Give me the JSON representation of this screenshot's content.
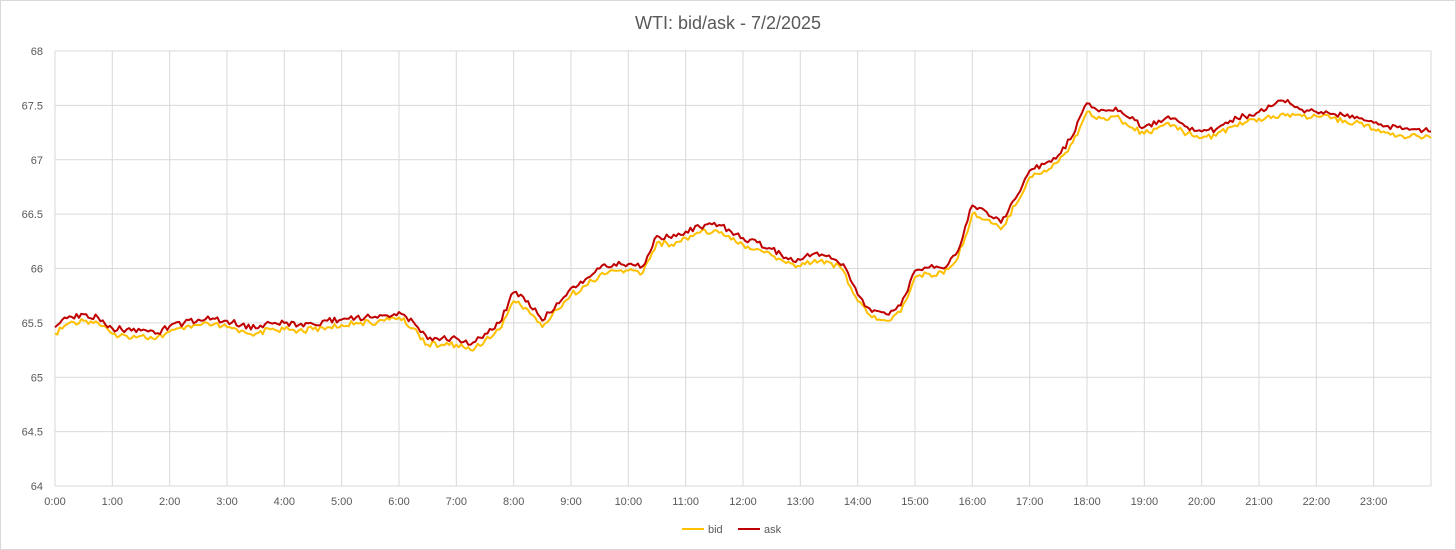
{
  "chart_data": {
    "type": "line",
    "title": "WTI: bid/ask - 7/2/2025",
    "xlabel": "",
    "ylabel": "",
    "xlim": [
      0,
      24
    ],
    "ylim": [
      64,
      68
    ],
    "grid": "on",
    "legend_position": "bottom-center",
    "x_ticks": [
      "0:00",
      "1:00",
      "2:00",
      "3:00",
      "4:00",
      "5:00",
      "6:00",
      "7:00",
      "8:00",
      "9:00",
      "10:00",
      "11:00",
      "12:00",
      "13:00",
      "14:00",
      "15:00",
      "16:00",
      "17:00",
      "18:00",
      "19:00",
      "20:00",
      "21:00",
      "22:00",
      "23:00"
    ],
    "y_ticks": [
      "64",
      "64.5",
      "65",
      "65.5",
      "66",
      "66.5",
      "67",
      "67.5",
      "68"
    ],
    "x": [
      "0:00",
      "0:15",
      "0:30",
      "0:45",
      "1:00",
      "1:15",
      "1:30",
      "1:45",
      "2:00",
      "2:15",
      "2:30",
      "2:45",
      "3:00",
      "3:15",
      "3:30",
      "3:45",
      "4:00",
      "4:15",
      "4:30",
      "4:45",
      "5:00",
      "5:15",
      "5:30",
      "5:45",
      "6:00",
      "6:15",
      "6:30",
      "6:45",
      "7:00",
      "7:15",
      "7:30",
      "7:45",
      "8:00",
      "8:15",
      "8:30",
      "8:45",
      "9:00",
      "9:15",
      "9:30",
      "9:45",
      "10:00",
      "10:15",
      "10:30",
      "10:45",
      "11:00",
      "11:15",
      "11:30",
      "11:45",
      "12:00",
      "12:15",
      "12:30",
      "12:45",
      "13:00",
      "13:15",
      "13:30",
      "13:45",
      "14:00",
      "14:15",
      "14:30",
      "14:45",
      "15:00",
      "15:15",
      "15:30",
      "15:45",
      "16:00",
      "16:15",
      "16:30",
      "16:45",
      "17:00",
      "17:15",
      "17:30",
      "17:45",
      "18:00",
      "18:15",
      "18:30",
      "18:45",
      "19:00",
      "19:15",
      "19:30",
      "19:45",
      "20:00",
      "20:15",
      "20:30",
      "20:45",
      "21:00",
      "21:15",
      "21:30",
      "21:45",
      "22:00",
      "22:15",
      "22:30",
      "22:45",
      "23:00",
      "23:15",
      "23:30",
      "23:45",
      "24:00"
    ],
    "series": [
      {
        "name": "bid",
        "color": "#ffc000",
        "values": [
          65.4,
          65.5,
          65.52,
          65.5,
          65.4,
          65.38,
          65.38,
          65.35,
          65.42,
          65.44,
          65.48,
          65.48,
          65.46,
          65.43,
          65.4,
          65.44,
          65.44,
          65.43,
          65.44,
          65.46,
          65.48,
          65.5,
          65.5,
          65.52,
          65.55,
          65.45,
          65.3,
          65.3,
          65.3,
          65.25,
          65.34,
          65.44,
          65.7,
          65.62,
          65.46,
          65.62,
          65.76,
          65.84,
          65.94,
          65.98,
          65.98,
          65.96,
          66.24,
          66.22,
          66.28,
          66.33,
          66.35,
          66.3,
          66.22,
          66.18,
          66.12,
          66.05,
          66.02,
          66.08,
          66.06,
          65.98,
          65.7,
          65.55,
          65.52,
          65.6,
          65.92,
          65.95,
          65.95,
          66.1,
          66.5,
          66.45,
          66.36,
          66.58,
          66.84,
          66.9,
          66.98,
          67.16,
          67.44,
          67.38,
          67.4,
          67.3,
          67.24,
          67.3,
          67.32,
          67.24,
          67.2,
          67.22,
          67.3,
          67.34,
          67.38,
          67.4,
          67.42,
          67.4,
          67.4,
          67.38,
          67.36,
          67.34,
          67.28,
          67.25,
          67.22,
          67.22,
          67.2
        ]
      },
      {
        "name": "ask",
        "color": "#c00000",
        "values": [
          65.46,
          65.56,
          65.58,
          65.55,
          65.45,
          65.44,
          65.43,
          65.4,
          65.47,
          65.5,
          65.53,
          65.54,
          65.52,
          65.48,
          65.45,
          65.5,
          65.5,
          65.48,
          65.49,
          65.52,
          65.53,
          65.55,
          65.55,
          65.57,
          65.6,
          65.51,
          65.35,
          65.36,
          65.36,
          65.3,
          65.4,
          65.5,
          65.78,
          65.7,
          65.52,
          65.68,
          65.82,
          65.9,
          66.0,
          66.04,
          66.04,
          66.02,
          66.3,
          66.28,
          66.34,
          66.38,
          66.42,
          66.36,
          66.28,
          66.24,
          66.18,
          66.1,
          66.08,
          66.14,
          66.12,
          66.04,
          65.76,
          65.6,
          65.58,
          65.66,
          65.98,
          66.01,
          66.0,
          66.16,
          66.58,
          66.52,
          66.42,
          66.64,
          66.9,
          66.96,
          67.04,
          67.22,
          67.52,
          67.46,
          67.48,
          67.38,
          67.3,
          67.36,
          67.38,
          67.3,
          67.26,
          67.28,
          67.36,
          67.4,
          67.44,
          67.5,
          67.55,
          67.46,
          67.44,
          67.42,
          67.4,
          67.38,
          67.34,
          67.31,
          67.28,
          67.28,
          67.26
        ]
      }
    ]
  }
}
